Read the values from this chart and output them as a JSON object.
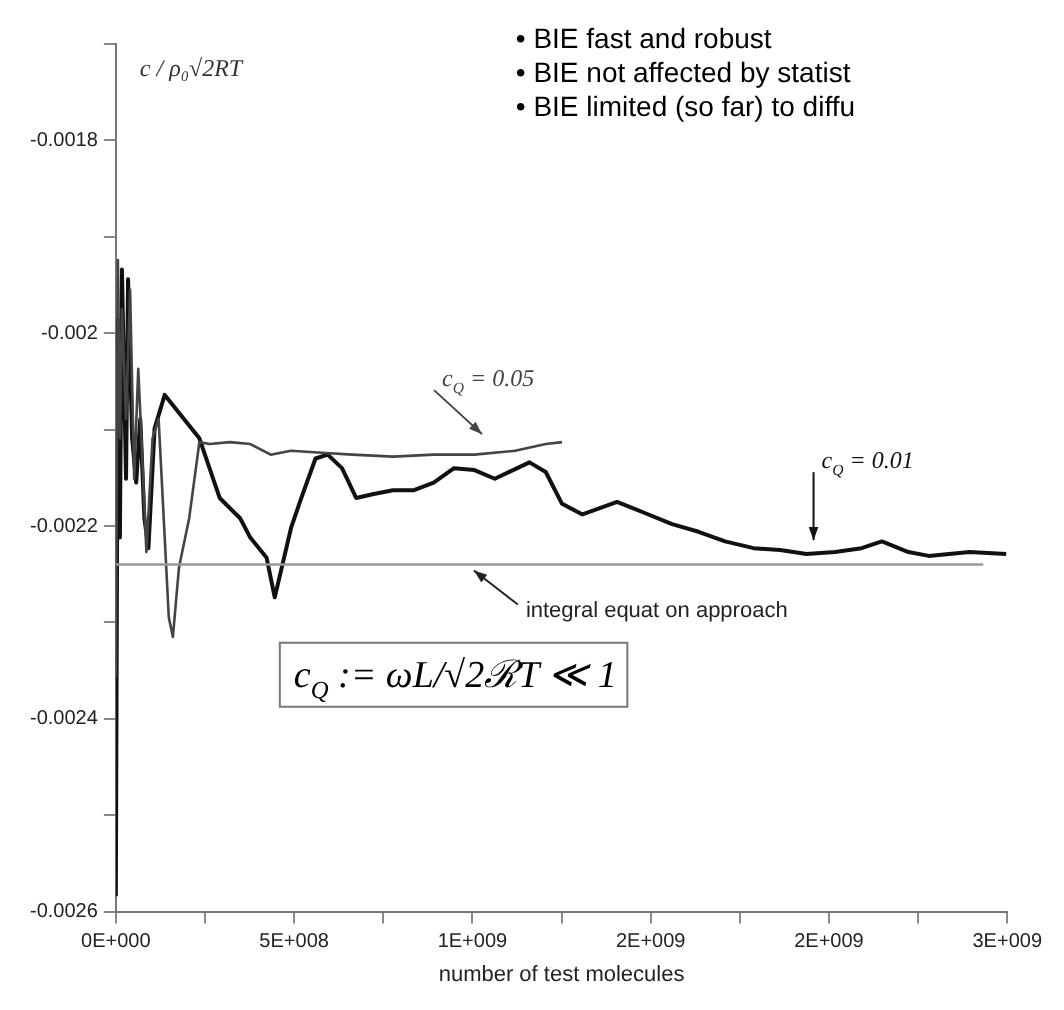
{
  "chart_data": {
    "type": "line",
    "ylabel": "c / ρ₀√2RT",
    "xlabel": "number of test molecules",
    "annotations": [
      "• BIE fast and robust",
      "• BIE not affected by statist",
      "• BIE limited (so far) to diffu",
      "c$_{Q}$ := ωL/√2ℛT ≪ 1"
    ],
    "series": [
      {
        "name": "c$_{Q}$ = 0.05",
        "color": "#444444",
        "x": [
          0,
          5700000,
          11400000,
          17100000,
          28600000,
          40000000,
          51400000,
          62900000,
          74300000,
          85700000,
          102900000,
          120000000,
          148600000,
          160000000,
          177100000,
          205700000,
          234300000,
          262900000,
          320000000,
          377100000,
          434300000,
          491400000,
          577100000,
          662900000,
          777100000,
          891400000,
          1005700000,
          1120000000,
          1205700000,
          1251400000
        ],
        "values": [
          -0.002357,
          -0.001924,
          -0.002109,
          -0.001975,
          -0.002089,
          -0.001955,
          -0.002151,
          -0.002037,
          -0.00213,
          -0.002227,
          -0.002109,
          -0.002089,
          -0.002295,
          -0.002315,
          -0.002243,
          -0.002192,
          -0.002113,
          -0.002115,
          -0.002113,
          -0.002115,
          -0.002126,
          -0.002122,
          -0.002124,
          -0.002126,
          -0.002128,
          -0.002126,
          -0.002126,
          -0.002122,
          -0.002115,
          -0.002113
        ]
      },
      {
        "name": "c$_{Q}$ = 0.01",
        "color": "#111111",
        "x": [
          0,
          5700000,
          11400000,
          17100000,
          28600000,
          34300000,
          45700000,
          57100000,
          68600000,
          80000000,
          91400000,
          108600000,
          137100000,
          234300000,
          291400000,
          348600000,
          377100000,
          422900000,
          445700000,
          491400000,
          520000000,
          560000000,
          594300000,
          634300000,
          674300000,
          720000000,
          777100000,
          834300000,
          891400000,
          948600000,
          1005700000,
          1062900000,
          1160000000,
          1205700000,
          1251400000,
          1308600000,
          1405700000,
          1480000000,
          1560000000,
          1634300000,
          1708600000,
          1788600000,
          1862900000,
          1937100000,
          2017100000,
          2091400000,
          2148600000,
          2222900000,
          2280000000,
          2394300000,
          2497000000
        ],
        "values": [
          -0.002584,
          -0.001986,
          -0.002212,
          -0.001934,
          -0.002151,
          -0.001944,
          -0.002109,
          -0.002155,
          -0.002089,
          -0.002192,
          -0.002223,
          -0.002099,
          -0.002064,
          -0.002109,
          -0.002171,
          -0.002192,
          -0.002212,
          -0.002233,
          -0.002274,
          -0.002202,
          -0.002171,
          -0.00213,
          -0.002126,
          -0.00214,
          -0.002171,
          -0.002167,
          -0.002163,
          -0.002163,
          -0.002155,
          -0.00214,
          -0.002142,
          -0.002151,
          -0.002134,
          -0.002144,
          -0.002177,
          -0.002188,
          -0.002175,
          -0.002186,
          -0.002198,
          -0.002206,
          -0.002216,
          -0.002223,
          -0.002225,
          -0.002229,
          -0.002227,
          -0.002223,
          -0.002216,
          -0.002227,
          -0.002231,
          -0.002227,
          -0.002229
        ]
      }
    ],
    "ref_lines": [
      {
        "axis": "y",
        "value": -0.00224,
        "label": "integral equat on approach",
        "color": "#999999"
      }
    ],
    "xlim": [
      0,
      2500000000
    ],
    "xticks": [
      {
        "value": 0,
        "label": "0E+000"
      },
      {
        "value": 250000000,
        "label": null
      },
      {
        "value": 500000000,
        "label": "5E+008"
      },
      {
        "value": 750000000,
        "label": null
      },
      {
        "value": 1000000000,
        "label": "1E+009"
      },
      {
        "value": 1250000000,
        "label": null
      },
      {
        "value": 1500000000,
        "label": "2E+009"
      },
      {
        "value": 1750000000,
        "label": null
      },
      {
        "value": 2000000000,
        "label": "2E+009"
      },
      {
        "value": 2250000000,
        "label": null
      },
      {
        "value": 2500000000,
        "label": "3E+009"
      }
    ],
    "ylim": [
      -0.0026,
      -0.0017
    ],
    "yticks": [
      -0.0026,
      {
        "value": -0.0025,
        "label": null
      },
      -0.0024,
      {
        "value": -0.0023,
        "label": null
      },
      -0.0022,
      {
        "value": -0.0021,
        "label": null
      },
      -0.002,
      {
        "value": -0.0019,
        "label": null
      },
      -0.0018,
      {
        "value": -0.0017,
        "label": null
      }
    ],
    "grid": false,
    "legend": false,
    "marker": "none",
    "line_style": "solid"
  }
}
